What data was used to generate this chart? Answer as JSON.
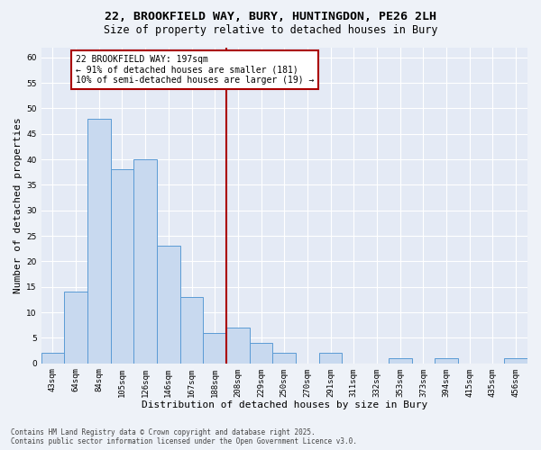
{
  "title1": "22, BROOKFIELD WAY, BURY, HUNTINGDON, PE26 2LH",
  "title2": "Size of property relative to detached houses in Bury",
  "xlabel": "Distribution of detached houses by size in Bury",
  "ylabel": "Number of detached properties",
  "bar_labels": [
    "43sqm",
    "64sqm",
    "84sqm",
    "105sqm",
    "126sqm",
    "146sqm",
    "167sqm",
    "188sqm",
    "208sqm",
    "229sqm",
    "250sqm",
    "270sqm",
    "291sqm",
    "311sqm",
    "332sqm",
    "353sqm",
    "373sqm",
    "394sqm",
    "415sqm",
    "435sqm",
    "456sqm"
  ],
  "bar_values": [
    2,
    14,
    48,
    38,
    40,
    23,
    13,
    6,
    7,
    4,
    2,
    0,
    2,
    0,
    0,
    1,
    0,
    1,
    0,
    0,
    1
  ],
  "bar_color": "#c8d9ef",
  "bar_edge_color": "#5b9bd5",
  "vline_color": "#aa0000",
  "annotation_text": "22 BROOKFIELD WAY: 197sqm\n← 91% of detached houses are smaller (181)\n10% of semi-detached houses are larger (19) →",
  "annotation_box_color": "#aa0000",
  "ylim": [
    0,
    62
  ],
  "yticks": [
    0,
    5,
    10,
    15,
    20,
    25,
    30,
    35,
    40,
    45,
    50,
    55,
    60
  ],
  "fig_bg_color": "#eef2f8",
  "ax_bg_color": "#e4eaf5",
  "grid_color": "#ffffff",
  "footer": "Contains HM Land Registry data © Crown copyright and database right 2025.\nContains public sector information licensed under the Open Government Licence v3.0.",
  "title1_fontsize": 9.5,
  "title2_fontsize": 8.5,
  "xlabel_fontsize": 8,
  "ylabel_fontsize": 8,
  "tick_fontsize": 6.5,
  "annotation_fontsize": 7,
  "footer_fontsize": 5.5,
  "vline_pos": 7.5
}
